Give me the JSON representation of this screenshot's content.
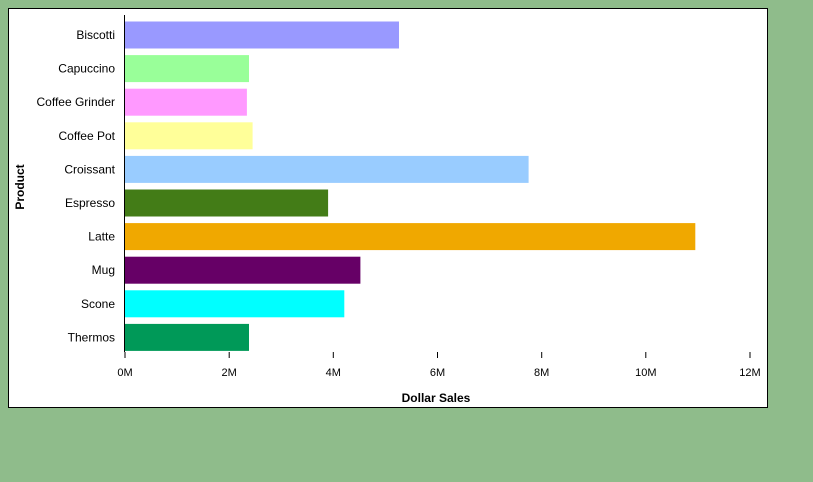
{
  "chart_data": {
    "type": "bar",
    "orientation": "horizontal",
    "xlabel": "Dollar Sales",
    "ylabel": "Product",
    "xlim": [
      0,
      12000000
    ],
    "x_ticks": [
      {
        "value": 0,
        "label": "0M"
      },
      {
        "value": 2000000,
        "label": "2M"
      },
      {
        "value": 4000000,
        "label": "4M"
      },
      {
        "value": 6000000,
        "label": "6M"
      },
      {
        "value": 8000000,
        "label": "8M"
      },
      {
        "value": 10000000,
        "label": "10M"
      },
      {
        "value": 12000000,
        "label": "12M"
      }
    ],
    "grid": false,
    "legend": "none",
    "categories": [
      "Biscotti",
      "Capuccino",
      "Coffee Grinder",
      "Coffee Pot",
      "Croissant",
      "Espresso",
      "Latte",
      "Mug",
      "Scone",
      "Thermos"
    ],
    "values": [
      5260000,
      2380000,
      2340000,
      2450000,
      7750000,
      3900000,
      10950000,
      4520000,
      4210000,
      2380000
    ],
    "colors": [
      "#9999ff",
      "#99ff99",
      "#ff99ff",
      "#ffff99",
      "#99ccff",
      "#437c17",
      "#f0a800",
      "#660066",
      "#00ffff",
      "#009958"
    ]
  },
  "page_background": "#8fbc8b"
}
